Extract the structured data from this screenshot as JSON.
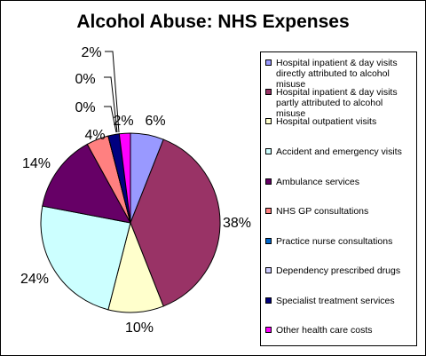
{
  "chart_data": {
    "type": "pie",
    "title": "Alcohol Abuse: NHS Expenses",
    "slices": [
      {
        "label": "Hospital inpatient & day visits directly attributed to alcohol misuse",
        "value": 6,
        "display": "6%",
        "color": "#9999ff"
      },
      {
        "label": "Hospital inpatient & day visits partly attributed to alcohol misuse",
        "value": 38,
        "display": "38%",
        "color": "#993366"
      },
      {
        "label": "Hospital outpatient visits",
        "value": 10,
        "display": "10%",
        "color": "#ffffcc"
      },
      {
        "label": "Accident and emergency visits",
        "value": 24,
        "display": "24%",
        "color": "#ccffff"
      },
      {
        "label": "Ambulance services",
        "value": 14,
        "display": "14%",
        "color": "#660066"
      },
      {
        "label": "NHS GP consultations",
        "value": 4,
        "display": "4%",
        "color": "#ff8080"
      },
      {
        "label": "Practice nurse consultations",
        "value": 0,
        "display": "0%",
        "color": "#0066cc"
      },
      {
        "label": "Dependency prescribed drugs",
        "value": 0,
        "display": "0%",
        "color": "#ccccff"
      },
      {
        "label": "Specialist treatment services",
        "value": 2,
        "display": "2%",
        "color": "#000080"
      },
      {
        "label": "Other health care costs",
        "value": 2,
        "display": "2%",
        "color": "#ff00ff"
      }
    ],
    "legend_position": "right"
  }
}
